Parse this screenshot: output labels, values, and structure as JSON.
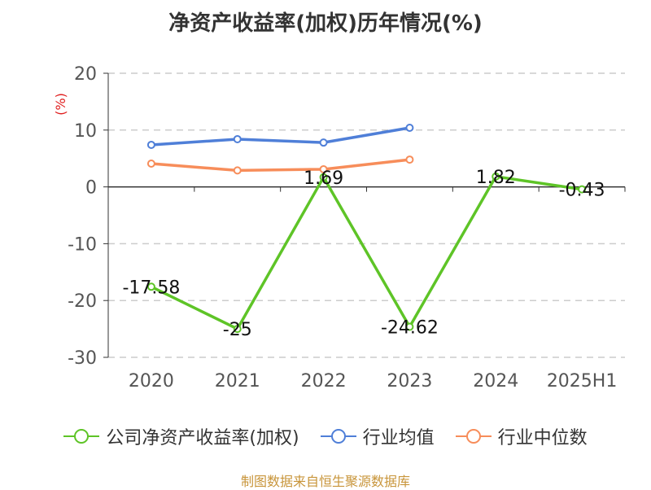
{
  "title": "净资产收益率(加权)历年情况(%)",
  "unit_label": "(%)",
  "source": "制图数据来自恒生聚源数据库",
  "colors": {
    "company": "#5ec427",
    "industry_avg": "#4f7fd8",
    "industry_median": "#f78d5a",
    "grid": "#cccccc",
    "axis": "#333333"
  },
  "legend": [
    {
      "label": "公司净资产收益率(加权)",
      "color": "#5ec427"
    },
    {
      "label": "行业均值",
      "color": "#4f7fd8"
    },
    {
      "label": "行业中位数",
      "color": "#f78d5a"
    }
  ],
  "chart_data": {
    "type": "line",
    "title": "净资产收益率(加权)历年情况(%)",
    "xlabel": "",
    "ylabel": "(%)",
    "ylim": [
      -30,
      20
    ],
    "yticks": [
      20,
      10,
      0,
      -10,
      -20,
      -30
    ],
    "categories": [
      "2020",
      "2021",
      "2022",
      "2023",
      "2024",
      "2025H1"
    ],
    "grid": true,
    "legend_position": "bottom",
    "series": [
      {
        "name": "公司净资产收益率(加权)",
        "values": [
          -17.58,
          -25,
          1.69,
          -24.62,
          1.82,
          -0.43
        ],
        "labels": [
          "-17.58",
          "-25",
          "1.69",
          "-24.62",
          "1.82",
          "-0.43"
        ],
        "color": "#5ec427"
      },
      {
        "name": "行业均值",
        "values": [
          7.4,
          8.4,
          7.8,
          10.4,
          null,
          null
        ],
        "color": "#4f7fd8"
      },
      {
        "name": "行业中位数",
        "values": [
          4.1,
          2.9,
          3.1,
          4.8,
          null,
          null
        ],
        "color": "#f78d5a"
      }
    ]
  }
}
